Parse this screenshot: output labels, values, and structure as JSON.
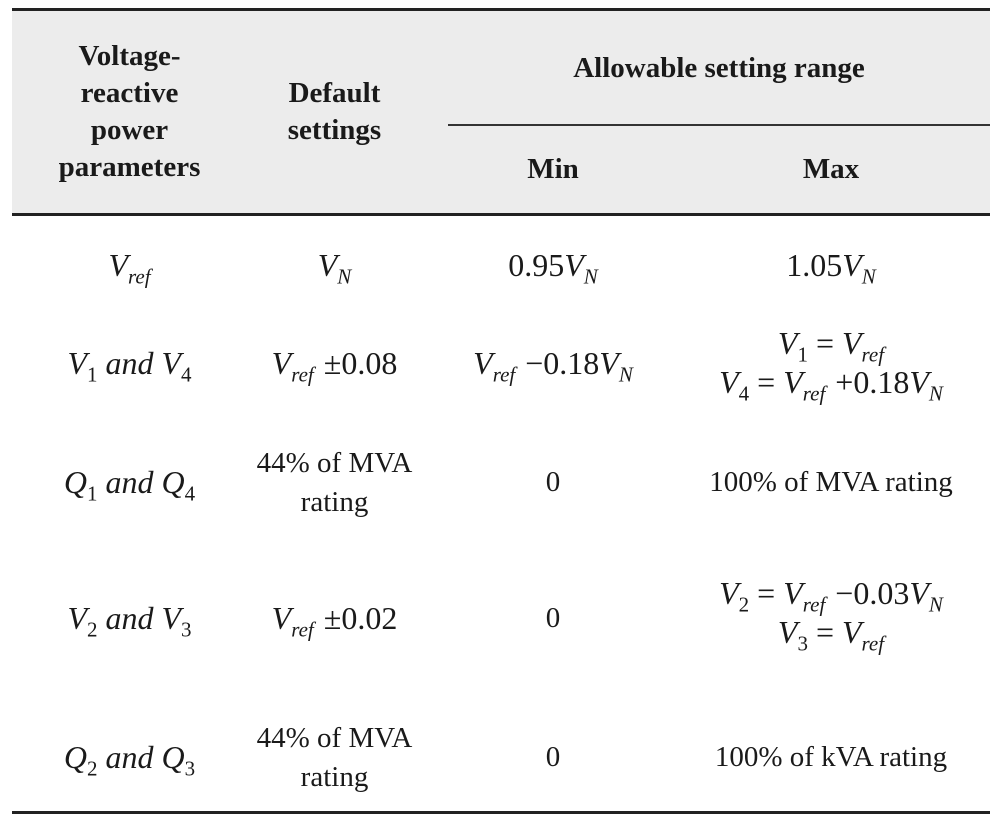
{
  "table": {
    "headers": {
      "param": [
        "Voltage-",
        "reactive",
        "power",
        "parameters"
      ],
      "default": [
        "Default",
        "settings"
      ],
      "range": "Allowable setting range",
      "min": "Min",
      "max": "Max"
    },
    "rows": {
      "vref": {
        "param_sym": "V",
        "param_sub": "ref",
        "default_sym": "V",
        "default_sub": "N",
        "min_coef": "0.95",
        "min_sym": "V",
        "min_sub": "N",
        "max_coef": "1.05",
        "max_sym": "V",
        "max_sub": "N"
      },
      "v1v4": {
        "a_sym": "V",
        "a_sub": "1",
        "conj": "and",
        "b_sym": "V",
        "b_sub": "4",
        "default_sym": "V",
        "default_sub": "ref",
        "default_op": "±",
        "default_val": "0.08",
        "min_sym": "V",
        "min_sub": "ref",
        "min_op": "−",
        "min_coef": "0.18",
        "min_sym2": "V",
        "min_sub2": "N",
        "max_l1_sym": "V",
        "max_l1_sub": "1",
        "max_l1_eq": "=",
        "max_l1_rsym": "V",
        "max_l1_rsub": "ref",
        "max_l2_sym": "V",
        "max_l2_sub": "4",
        "max_l2_eq": "=",
        "max_l2_rsym": "V",
        "max_l2_rsub": "ref",
        "max_l2_op": "+",
        "max_l2_coef": "0.18",
        "max_l2_sym2": "V",
        "max_l2_sub2": "N"
      },
      "q1q4": {
        "a_sym": "Q",
        "a_sub": "1",
        "conj": "and",
        "b_sym": "Q",
        "b_sub": "4",
        "default_l1": "44% of MVA",
        "default_l2": "rating",
        "min": "0",
        "max": "100% of MVA rating"
      },
      "v2v3": {
        "a_sym": "V",
        "a_sub": "2",
        "conj": "and",
        "b_sym": "V",
        "b_sub": "3",
        "default_sym": "V",
        "default_sub": "ref",
        "default_op": "±",
        "default_val": "0.02",
        "min": "0",
        "max_l1_sym": "V",
        "max_l1_sub": "2",
        "max_l1_eq": "=",
        "max_l1_rsym": "V",
        "max_l1_rsub": "ref",
        "max_l1_op": "−",
        "max_l1_coef": "0.03",
        "max_l1_sym2": "V",
        "max_l1_sub2": "N",
        "max_l2_sym": "V",
        "max_l2_sub": "3",
        "max_l2_eq": "=",
        "max_l2_rsym": "V",
        "max_l2_rsub": "ref"
      },
      "q2q3": {
        "a_sym": "Q",
        "a_sub": "2",
        "conj": "and",
        "b_sym": "Q",
        "b_sub": "3",
        "default_l1": "44% of MVA",
        "default_l2": "rating",
        "min": "0",
        "max": "100% of kVA rating"
      }
    }
  }
}
